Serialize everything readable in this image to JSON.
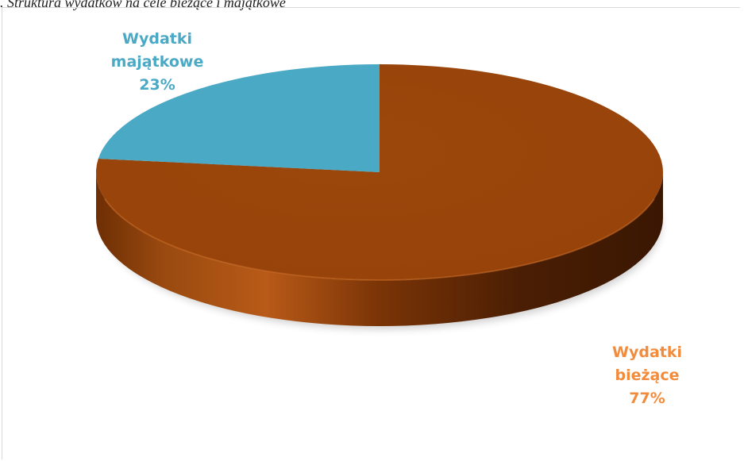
{
  "caption": ". Struktura wydatków na cele bieżące i majątkowe",
  "chart_data": {
    "type": "pie",
    "style": "3d",
    "title": "",
    "slices": [
      {
        "name_line1": "Wydatki",
        "name_line2": "bieżące",
        "percent_label": "77%",
        "value": 77,
        "color": "#98440a",
        "label_color": "#f28c3c"
      },
      {
        "name_line1": "Wydatki",
        "name_line2": "majątkowe",
        "percent_label": "23%",
        "value": 23,
        "color": "#4aa9c5",
        "label_color": "#4aa9c5"
      }
    ],
    "legend": "none"
  }
}
